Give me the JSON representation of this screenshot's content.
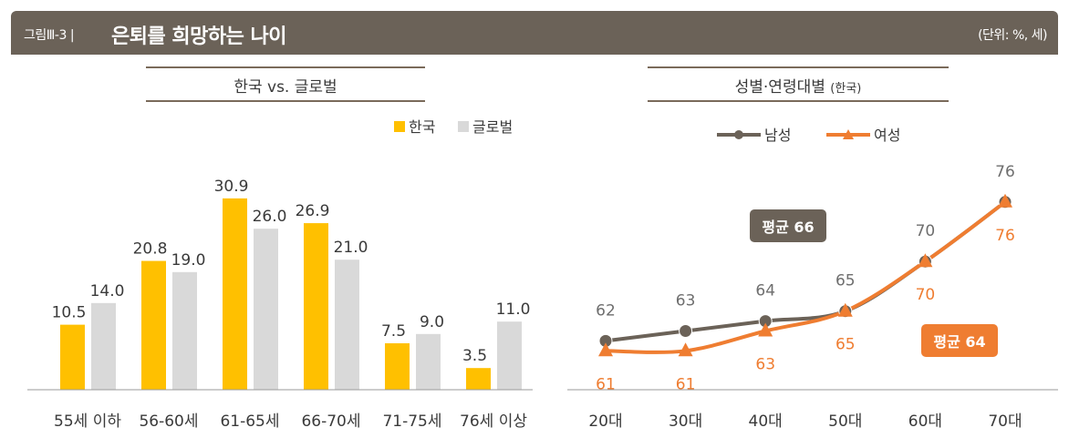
{
  "header": {
    "prefix": "그림Ⅲ-3 |",
    "title": "은퇴를 희망하는 나이",
    "unit": "(단위: %, 세)"
  },
  "colors": {
    "korea": "#ffc000",
    "global": "#d9d9d9",
    "male": "#6b6258",
    "female": "#ef7d31",
    "rule": "#7a6a5a",
    "text": "#3a3a3a",
    "label_gray": "#6e6e6e"
  },
  "chart_data": [
    {
      "type": "bar",
      "title": "한국 vs. 글로벌",
      "categories": [
        "55세 이하",
        "56-60세",
        "61-65세",
        "66-70세",
        "71-75세",
        "76세 이상"
      ],
      "series": [
        {
          "name": "한국",
          "values": [
            10.5,
            20.8,
            30.9,
            26.9,
            7.5,
            3.5
          ]
        },
        {
          "name": "글로벌",
          "values": [
            14.0,
            19.0,
            26.0,
            21.0,
            9.0,
            11.0
          ]
        }
      ],
      "ylim": [
        0,
        35
      ],
      "legend": "top-right",
      "grid": false
    },
    {
      "type": "line",
      "title": "성별·연령대별",
      "subtitle": "(한국)",
      "categories": [
        "20대",
        "30대",
        "40대",
        "50대",
        "60대",
        "70대"
      ],
      "series": [
        {
          "name": "남성",
          "values": [
            62,
            63,
            64,
            65,
            70,
            76
          ]
        },
        {
          "name": "여성",
          "values": [
            61,
            61,
            63,
            65,
            70,
            76
          ]
        }
      ],
      "ylim": [
        58,
        78
      ],
      "legend": "top-left",
      "grid": false,
      "annotations": [
        {
          "text": "평균 66",
          "series": "남성"
        },
        {
          "text": "평균 64",
          "series": "여성"
        }
      ]
    }
  ]
}
